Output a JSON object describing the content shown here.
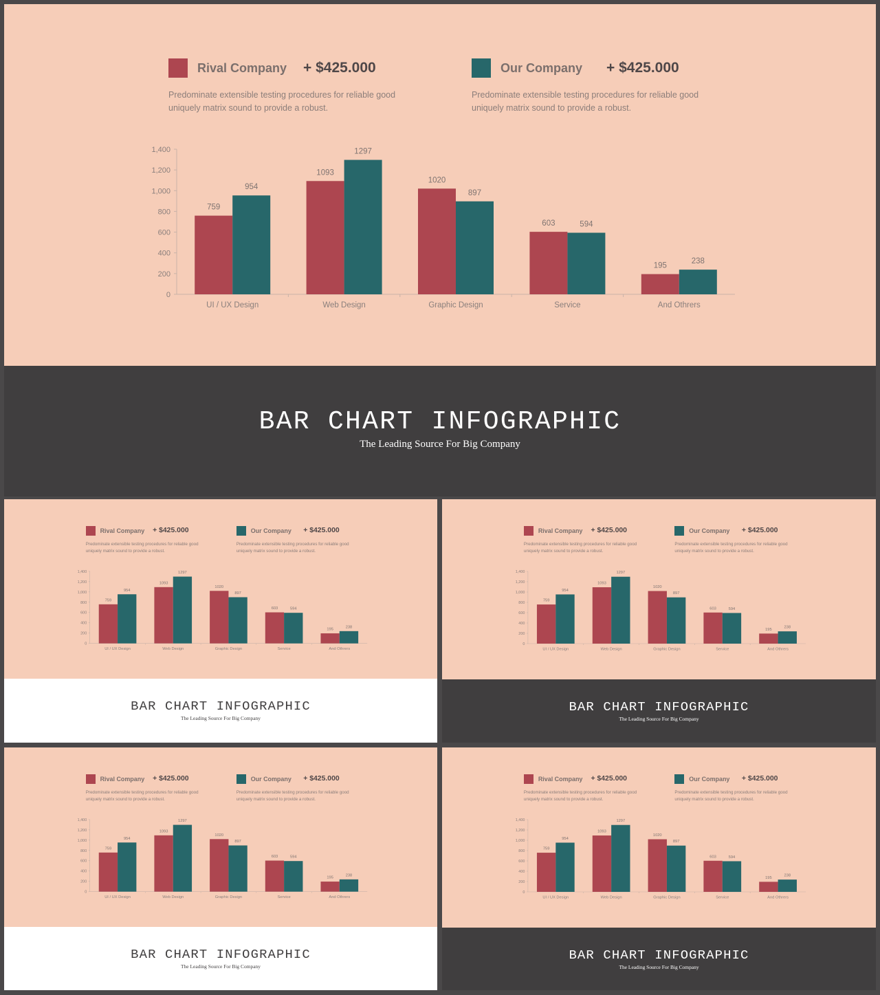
{
  "colors": {
    "rival": "#ad4650",
    "ours": "#27676a",
    "chart_bg": "#f6cdb8",
    "dark": "#403e3f",
    "light": "#ffffff"
  },
  "legend": [
    {
      "name": "Rival Company",
      "amount": "+ $425.000",
      "description": "Predominate extensible testing procedures for reliable good uniquely matrix sound to provide a robust."
    },
    {
      "name": "Our Company",
      "amount": "+ $425.000",
      "description": "Predominate extensible testing procedures for reliable good uniquely matrix sound to provide a robust."
    }
  ],
  "banner": {
    "title": "BAR CHART INFOGRAPHIC",
    "subtitle": "The Leading Source For Big Company"
  },
  "slides": [
    {
      "id": "main",
      "band": "dark"
    },
    {
      "id": "thumb-1",
      "band": "light"
    },
    {
      "id": "thumb-2",
      "band": "dark"
    },
    {
      "id": "thumb-3",
      "band": "light"
    },
    {
      "id": "thumb-4",
      "band": "dark"
    }
  ],
  "chart_data": {
    "type": "bar",
    "categories": [
      "UI / UX Design",
      "Web Design",
      "Graphic Design",
      "Service",
      "And Othrers"
    ],
    "series": [
      {
        "name": "Rival Company",
        "values": [
          759,
          1093,
          1020,
          603,
          195
        ]
      },
      {
        "name": "Our Company",
        "values": [
          954,
          1297,
          897,
          594,
          238
        ]
      }
    ],
    "yticks": [
      "0",
      "200",
      "400",
      "600",
      "800",
      "1,000",
      "1,200",
      "1,400"
    ],
    "ylim": [
      0,
      1400
    ],
    "grid": false,
    "legend_position": "top"
  }
}
